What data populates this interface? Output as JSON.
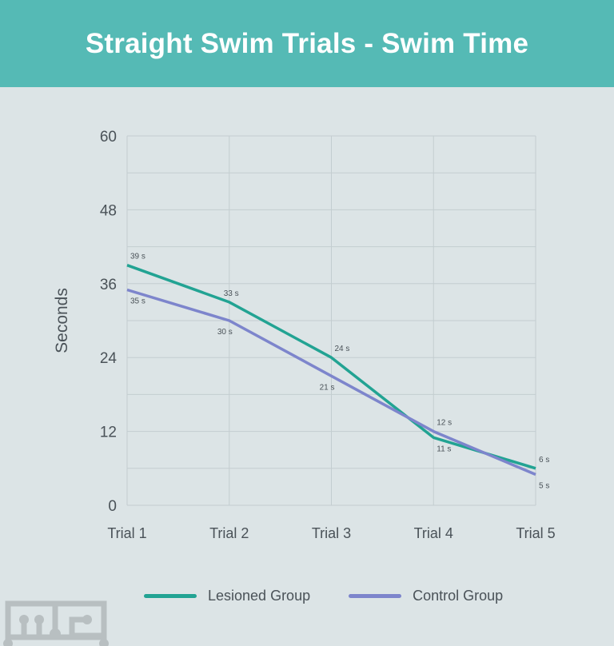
{
  "chart_data": {
    "type": "line",
    "title": "Straight Swim Trials - Swim Time",
    "xlabel": "",
    "ylabel": "Seconds",
    "categories": [
      "Trial 1",
      "Trial 2",
      "Trial 3",
      "Trial 4",
      "Trial 5"
    ],
    "ylim": [
      0,
      60
    ],
    "yticks": [
      "0",
      "12",
      "24",
      "36",
      "48",
      "60"
    ],
    "grid": true,
    "legend_position": "bottom",
    "series": [
      {
        "name": "Lesioned Group",
        "color": "#22a393",
        "values": [
          39,
          33,
          24,
          11,
          6
        ],
        "labels": [
          "39 s",
          "33 s",
          "24 s",
          "11 s",
          "6 s"
        ]
      },
      {
        "name": "Control Group",
        "color": "#7d85cc",
        "values": [
          35,
          30,
          21,
          12,
          5
        ],
        "labels": [
          "35 s",
          "30 s",
          "21 s",
          "12 s",
          "5 s"
        ]
      }
    ]
  }
}
